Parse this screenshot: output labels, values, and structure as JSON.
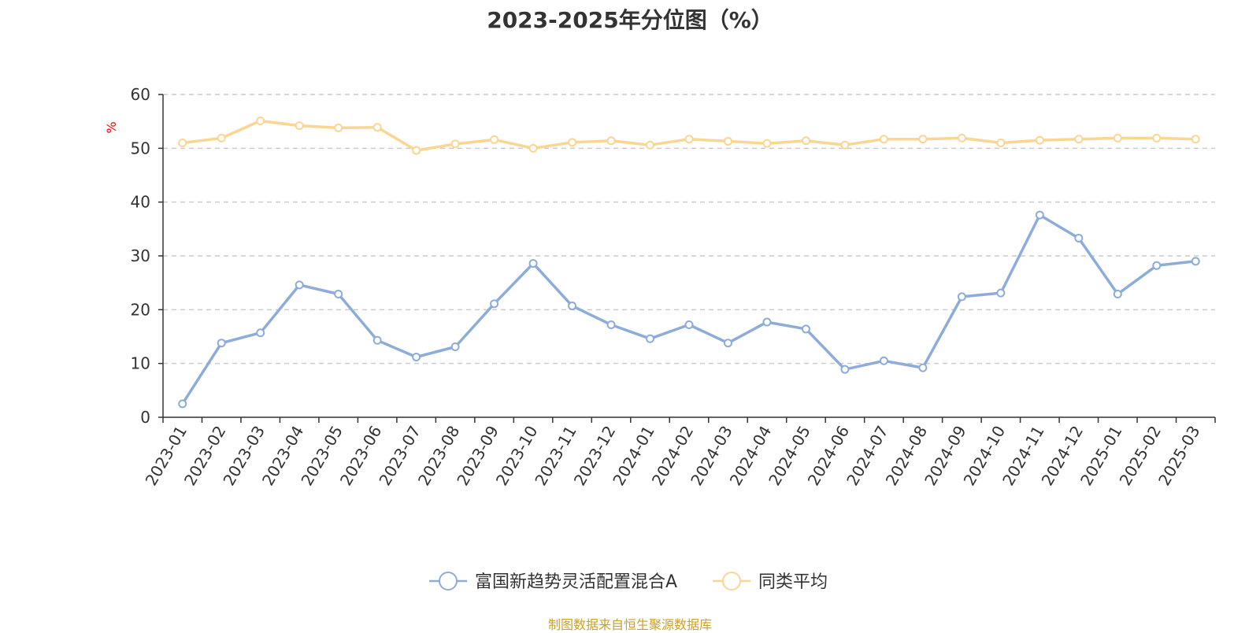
{
  "title": "2023-2025年分位图（%）",
  "source_note": "制图数据来自恒生聚源数据库",
  "chart_data": {
    "type": "line",
    "title": "2023-2025年分位图（%）",
    "ylabel": "%",
    "xlabel": "",
    "ylim": [
      0,
      60
    ],
    "yticks": [
      0,
      10,
      20,
      30,
      40,
      50,
      60
    ],
    "grid": "horizontal-dashed",
    "legend_position": "bottom",
    "categories": [
      "2023-01",
      "2023-02",
      "2023-03",
      "2023-04",
      "2023-05",
      "2023-06",
      "2023-07",
      "2023-08",
      "2023-09",
      "2023-10",
      "2023-11",
      "2023-12",
      "2024-01",
      "2024-02",
      "2024-03",
      "2024-04",
      "2024-05",
      "2024-06",
      "2024-07",
      "2024-08",
      "2024-09",
      "2024-10",
      "2024-11",
      "2024-12",
      "2025-01",
      "2025-02",
      "2025-03"
    ],
    "series": [
      {
        "name": "富国新趋势灵活配置混合A",
        "color": "#8eacd9",
        "values": [
          2.5,
          13.8,
          15.7,
          24.6,
          22.9,
          14.3,
          11.2,
          13.1,
          21.1,
          28.6,
          20.7,
          17.2,
          14.6,
          17.2,
          13.8,
          17.7,
          16.4,
          8.9,
          10.5,
          9.2,
          22.4,
          23.1,
          37.6,
          33.3,
          22.9,
          28.2,
          29.0
        ]
      },
      {
        "name": "同类平均",
        "color": "#fbd592",
        "values": [
          51.0,
          51.9,
          55.1,
          54.2,
          53.8,
          53.9,
          49.6,
          50.8,
          51.6,
          50.0,
          51.1,
          51.4,
          50.6,
          51.7,
          51.3,
          50.9,
          51.4,
          50.6,
          51.7,
          51.7,
          51.9,
          51.0,
          51.5,
          51.7,
          51.9,
          51.9,
          51.7
        ]
      }
    ]
  }
}
